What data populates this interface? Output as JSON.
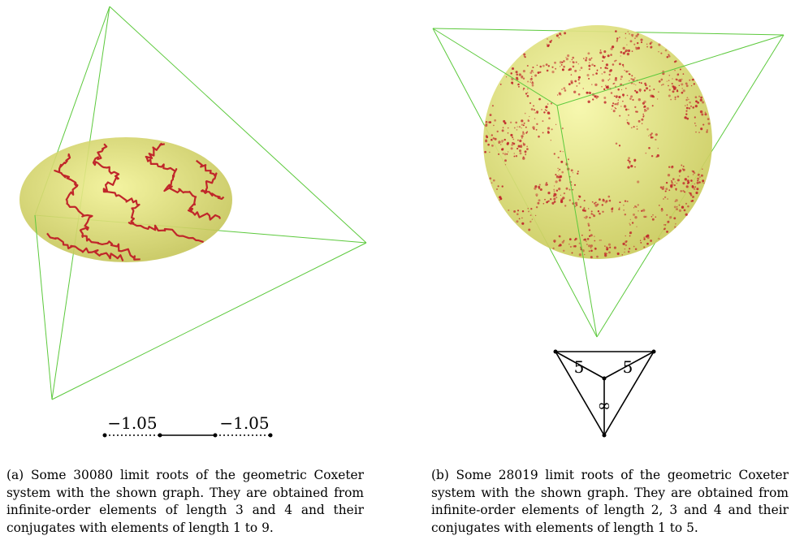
{
  "subfigures": [
    {
      "id": "a",
      "caption": "(a) Some 30080 limit roots of the geometric Coxeter system with the shown graph. They are obtained from infinite-order elements of length 3 and 4 and their conjugates with elements of length 1 to 9.",
      "graph": {
        "edge_labels": [
          "−1.05",
          "−1.05"
        ]
      }
    },
    {
      "id": "b",
      "caption": "(b) Some 28019 limit roots of the geometric Coxeter system with the shown graph. They are obtained from infinite-order elements of length 2, 3 and 4 and their conjugates with elements of length 1 to 5.",
      "graph": {
        "edge_labels": [
          "5",
          "5",
          "∞"
        ]
      }
    }
  ],
  "colors": {
    "tetrahedron_edges": "#5cc93c",
    "quadric_fill": "#e8ec7a",
    "limit_roots": "#c0262a",
    "graph": "#000000"
  }
}
